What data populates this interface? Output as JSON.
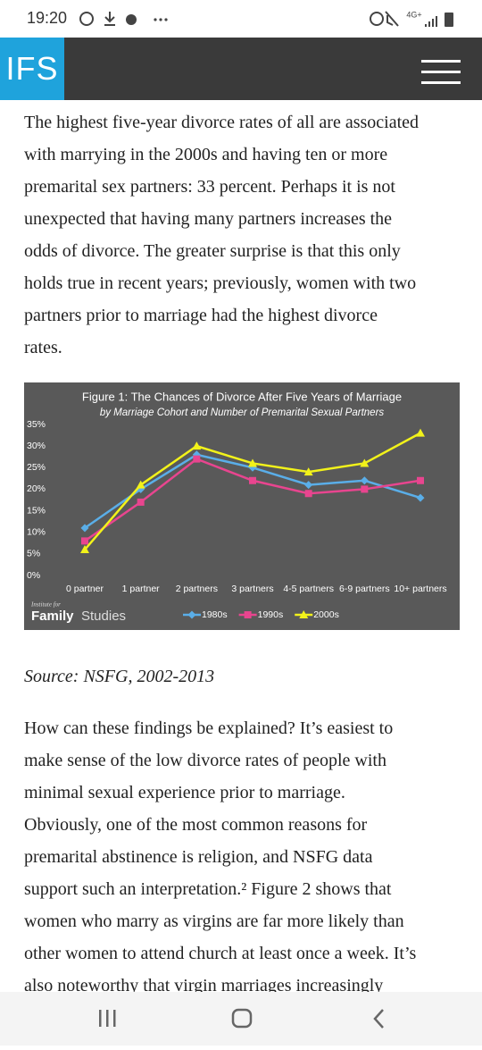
{
  "status_bar": {
    "time": "19:20",
    "network": "4G+"
  },
  "header": {
    "logo": "IFS"
  },
  "paragraph_1": [
    "The highest five-year divorce rates of all are associated",
    "with marrying in the 2000s and having ten or more",
    "premarital sex partners: 33 percent. Perhaps it is not",
    "unexpected that having many partners increases the",
    "odds of divorce. The greater surprise is that this only",
    "holds true in recent years; previously, women with two",
    "partners prior to marriage had the highest divorce",
    "rates."
  ],
  "chart_data": {
    "type": "line",
    "title": "Figure 1: The Chances of Divorce After Five Years of Marriage",
    "subtitle": "by Marriage Cohort and Number of Premarital Sexual Partners",
    "categories": [
      "0 partner",
      "1 partner",
      "2 partners",
      "3 partners",
      "4-5 partners",
      "6-9 partners",
      "10+ partners"
    ],
    "series": [
      {
        "name": "1980s",
        "color": "#5aaee8",
        "marker": "diamond",
        "values": [
          11,
          20,
          28,
          25,
          21,
          22,
          18
        ]
      },
      {
        "name": "1990s",
        "color": "#e8458f",
        "marker": "square",
        "values": [
          8,
          17,
          27,
          22,
          19,
          20,
          22
        ]
      },
      {
        "name": "2000s",
        "color": "#f2f21a",
        "marker": "triangle",
        "values": [
          6,
          21,
          30,
          26,
          24,
          26,
          33
        ]
      }
    ],
    "ylim": [
      0,
      35
    ],
    "yticks": [
      {
        "value": 0,
        "label": "0%"
      },
      {
        "value": 5,
        "label": "5%"
      },
      {
        "value": 10,
        "label": "10%"
      },
      {
        "value": 15,
        "label": "15%"
      },
      {
        "value": 20,
        "label": "20%"
      },
      {
        "value": 25,
        "label": "25%"
      },
      {
        "value": 30,
        "label": "30%"
      },
      {
        "value": 35,
        "label": "35%"
      }
    ],
    "grid": false,
    "legend": "bottom",
    "logo": {
      "small": "Institute for",
      "bold": "Family",
      "light": "Studies"
    }
  },
  "source": "Source: NSFG, 2002-2013",
  "paragraph_2": [
    "How can these findings be explained? It’s easiest to",
    "make sense of the low divorce rates of people with",
    "minimal sexual experience prior to marriage.",
    "Obviously, one of the most common reasons for",
    "premarital abstinence is religion, and NSFG data",
    "support such an interpretation.² Figure 2 shows that",
    "women who marry as virgins are far more likely than",
    "other women to attend church at least once a week. It’s",
    "also noteworthy that virgin marriages increasingly"
  ]
}
